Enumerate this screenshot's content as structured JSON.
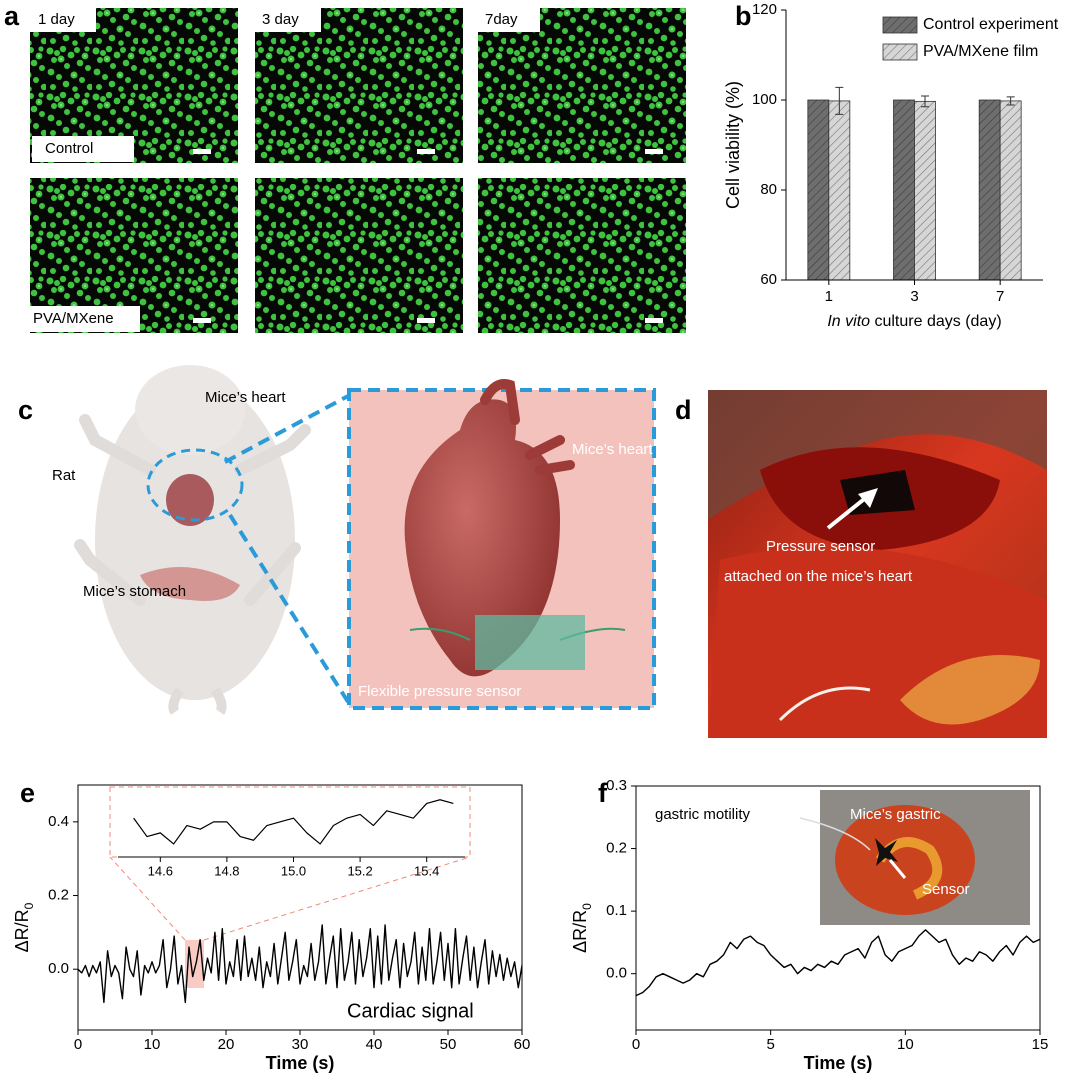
{
  "chart_data": [
    {
      "type": "bar",
      "categories": [
        "1",
        "3",
        "7"
      ],
      "x_label_parts": [
        "In vito",
        " culture days (day)"
      ],
      "y_label": "Cell viability (%)",
      "series": [
        {
          "name": "Control experiment",
          "color": "#6e6e6e",
          "values": [
            100,
            100,
            100
          ]
        },
        {
          "name": "PVA/MXene film",
          "color": "#d6d6d6",
          "values": [
            99.8,
            99.7,
            99.8
          ],
          "errors": [
            3,
            1.2,
            0.9
          ]
        }
      ],
      "ylim": [
        60,
        120
      ],
      "yticks": [
        60,
        80,
        100,
        120
      ],
      "legend": "top-right"
    },
    {
      "type": "line",
      "annotation": "Cardiac signal",
      "x_label": "Time (s)",
      "y_label_parts": [
        "ΔR/R",
        "0"
      ],
      "x": [
        0,
        0.5,
        1,
        1.5,
        2,
        2.5,
        3,
        3.5,
        4,
        4.5,
        5,
        5.5,
        6,
        6.5,
        7,
        7.5,
        8,
        8.5,
        9,
        9.5,
        10,
        10.5,
        11,
        11.5,
        12,
        12.5,
        13,
        13.5,
        14,
        14.5,
        15,
        15.5,
        16,
        16.5,
        17,
        17.5,
        18,
        18.5,
        19,
        19.5,
        20,
        20.5,
        21,
        21.5,
        22,
        22.5,
        23,
        23.5,
        24,
        24.5,
        25,
        25.5,
        26,
        26.5,
        27,
        27.5,
        28,
        28.5,
        29,
        29.5,
        30,
        30.5,
        31,
        31.5,
        32,
        32.5,
        33,
        33.5,
        34,
        34.5,
        35,
        35.5,
        36,
        36.5,
        37,
        37.5,
        38,
        38.5,
        39,
        39.5,
        40,
        40.5,
        41,
        41.5,
        42,
        42.5,
        43,
        43.5,
        44,
        44.5,
        45,
        45.5,
        46,
        46.5,
        47,
        47.5,
        48,
        48.5,
        49,
        49.5,
        50,
        50.5,
        51,
        51.5,
        52,
        52.5,
        53,
        53.5,
        54,
        54.5,
        55,
        55.5,
        56,
        56.5,
        57,
        57.5,
        58,
        58.5,
        59,
        59.5,
        60
      ],
      "values": [
        0,
        -0.01,
        0.01,
        -0.02,
        0.01,
        -0.01,
        0.02,
        -0.09,
        0.05,
        -0.02,
        0.01,
        -0.01,
        -0.08,
        0.06,
        0,
        -0.02,
        0.05,
        -0.07,
        0.01,
        -0.01,
        0.02,
        -0.01,
        0.01,
        0.08,
        -0.05,
        0,
        0.09,
        -0.04,
        0.01,
        -0.09,
        0.06,
        -0.02,
        0.02,
        0.08,
        -0.03,
        0.03,
        -0.01,
        0.1,
        -0.03,
        0.11,
        -0.04,
        0.02,
        -0.02,
        0.08,
        -0.03,
        0.09,
        -0.02,
        0.03,
        -0.03,
        0.06,
        -0.05,
        0.02,
        -0.02,
        0.07,
        -0.04,
        0.03,
        0.1,
        -0.03,
        0.02,
        0.08,
        -0.04,
        0.01,
        -0.02,
        0.07,
        -0.03,
        0.02,
        0.12,
        -0.04,
        0.03,
        0.09,
        -0.05,
        0.11,
        -0.03,
        0.02,
        0.1,
        -0.04,
        0.08,
        -0.02,
        0.03,
        0.11,
        -0.05,
        0.09,
        -0.04,
        0.12,
        -0.03,
        0.03,
        0.08,
        -0.05,
        0.07,
        -0.02,
        0.02,
        0.1,
        -0.04,
        0.06,
        -0.03,
        0.11,
        -0.04,
        0.02,
        0.1,
        -0.03,
        0.07,
        -0.05,
        0.11,
        -0.04,
        0.03,
        0.09,
        -0.03,
        0.06,
        -0.05,
        0.02,
        0.08,
        -0.04,
        0.05,
        -0.02,
        0.04,
        -0.03,
        0.03,
        -0.02,
        0.02,
        -0.05,
        0.01
      ],
      "color": "#000000",
      "xlim": [
        0,
        60
      ],
      "xticks": [
        0,
        10,
        20,
        30,
        40,
        50,
        60
      ],
      "ylim": [
        -0.165,
        0.5
      ],
      "yticks": [
        {
          "value": 0,
          "label": "0.0"
        },
        {
          "value": 0.2,
          "label": "0.2"
        },
        {
          "value": 0.4,
          "label": "0.4"
        }
      ]
    },
    {
      "type": "line",
      "x": [
        14.52,
        14.56,
        14.6,
        14.64,
        14.68,
        14.72,
        14.76,
        14.8,
        14.84,
        14.88,
        14.92,
        14.96,
        15,
        15.04,
        15.08,
        15.12,
        15.16,
        15.2,
        15.24,
        15.28,
        15.32,
        15.36,
        15.4,
        15.44,
        15.48
      ],
      "values": [
        0.41,
        0.36,
        0.37,
        0.34,
        0.39,
        0.38,
        0.4,
        0.4,
        0.36,
        0.35,
        0.39,
        0.4,
        0.41,
        0.37,
        0.34,
        0.39,
        0.41,
        0.42,
        0.39,
        0.43,
        0.42,
        0.41,
        0.45,
        0.46,
        0.45
      ],
      "color": "#000000",
      "xlim": [
        14.5,
        15.5
      ],
      "xticks": [
        14.6,
        14.8,
        {
          "value": 15,
          "label": "15.0"
        },
        15.2,
        15.4
      ]
    },
    {
      "type": "line",
      "x_label": "Time (s)",
      "y_label_parts": [
        "ΔR/R",
        "0"
      ],
      "x": [
        0,
        0.25,
        0.5,
        0.75,
        1,
        1.25,
        1.5,
        1.75,
        2,
        2.25,
        2.5,
        2.75,
        3,
        3.25,
        3.5,
        3.75,
        4,
        4.25,
        4.5,
        4.75,
        5,
        5.25,
        5.5,
        5.75,
        6,
        6.25,
        6.5,
        6.75,
        7,
        7.25,
        7.5,
        7.75,
        8,
        8.25,
        8.5,
        8.75,
        9,
        9.25,
        9.5,
        9.75,
        10,
        10.25,
        10.5,
        10.75,
        11,
        11.25,
        11.5,
        11.75,
        12,
        12.25,
        12.5,
        12.75,
        13,
        13.25,
        13.5,
        13.75,
        14,
        14.25,
        14.5,
        14.75,
        15
      ],
      "values": [
        -0.035,
        -0.03,
        -0.02,
        -0.005,
        0,
        -0.005,
        -0.01,
        -0.015,
        -0.01,
        0,
        -0.005,
        0.015,
        0.02,
        0.03,
        0.05,
        0.04,
        0.055,
        0.06,
        0.05,
        0.045,
        0.03,
        0.02,
        0.01,
        0.015,
        0,
        0.01,
        0.005,
        0.015,
        0.01,
        0.02,
        0.015,
        0.03,
        0.035,
        0.04,
        0.025,
        0.05,
        0.06,
        0.03,
        0.02,
        0.035,
        0.04,
        0.045,
        0.06,
        0.07,
        0.06,
        0.05,
        0.055,
        0.03,
        0.015,
        0.025,
        0.02,
        0.035,
        0.03,
        0.02,
        0.035,
        0.045,
        0.03,
        0.05,
        0.06,
        0.05,
        0.055
      ],
      "color": "#000000",
      "xlim": [
        0,
        15
      ],
      "xticks": [
        0,
        5,
        10,
        15
      ],
      "ylim": [
        -0.09,
        0.3
      ],
      "yticks": [
        {
          "value": 0,
          "label": "0.0"
        },
        {
          "value": 0.1,
          "label": "0.1"
        },
        {
          "value": 0.2,
          "label": "0.2"
        },
        {
          "value": 0.3,
          "label": "0.3"
        }
      ]
    }
  ],
  "figure": {
    "panel_letters": [
      "a",
      "b",
      "c",
      "d",
      "e",
      "f"
    ],
    "a_days": [
      "1 day",
      "3 day",
      "7day"
    ],
    "a_rows": [
      "Control",
      "PVA/MXene"
    ],
    "c_labels": [
      "Rat",
      "Mice’s heart",
      "Mice’s stomach",
      "Mice’s heart",
      "Flexible pressure sensor"
    ],
    "d_labels": [
      "Pressure sensor",
      "attached on the mice’s heart"
    ],
    "f_labels": [
      "gastric motility",
      "Mice’s gastric",
      "Sensor"
    ]
  }
}
